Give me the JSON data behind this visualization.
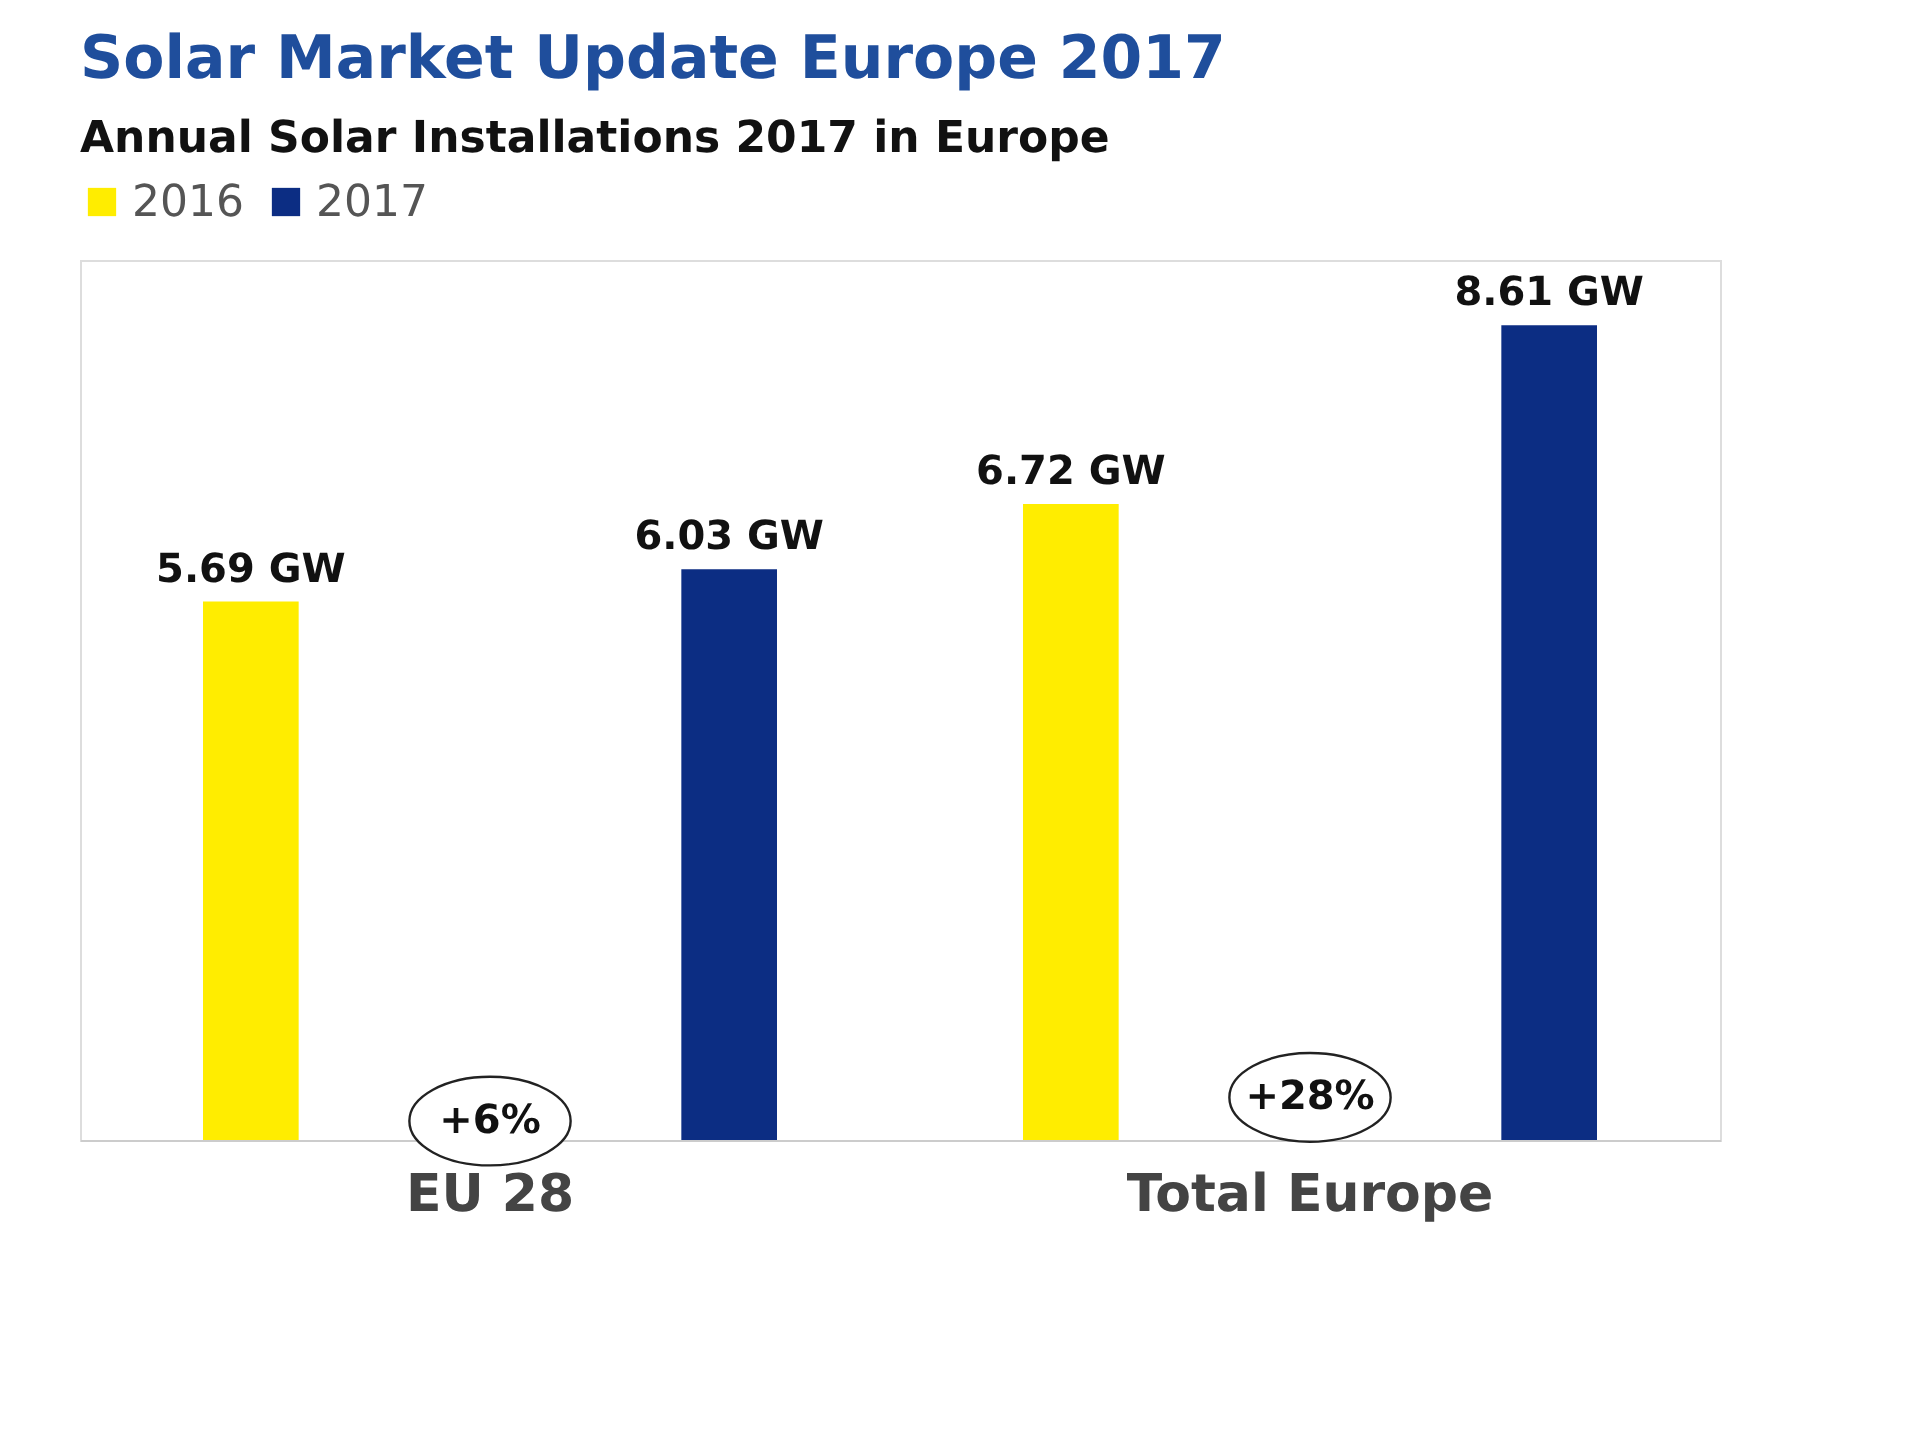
{
  "chart_data": {
    "type": "bar",
    "title": "Solar Market Update Europe 2017",
    "subtitle": "Annual Solar Installations 2017 in Europe",
    "categories": [
      "EU 28",
      "Total Europe"
    ],
    "series": [
      {
        "name": "2016",
        "color": "#ffed00",
        "values": [
          5.69,
          6.72
        ],
        "value_labels": [
          "5.69 GW",
          "6.72 GW"
        ]
      },
      {
        "name": "2017",
        "color": "#0c2d83",
        "values": [
          6.03,
          8.61
        ],
        "value_labels": [
          "6.03 GW",
          "8.61 GW"
        ]
      }
    ],
    "annotations": [
      "+6%",
      "+28%"
    ],
    "legend": "top",
    "grid": false
  }
}
